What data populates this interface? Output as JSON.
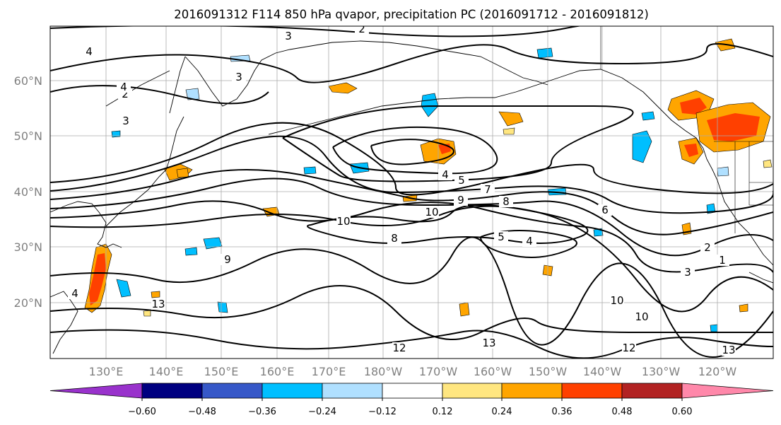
{
  "title": "2016091312 F114 850 hPa qvapor, precipitation PC (2016091712 - 2016091812)",
  "map": {
    "lat_labels": [
      "60°N",
      "50°N",
      "40°N",
      "30°N",
      "20°N"
    ],
    "lon_labels": [
      "130°E",
      "140°E",
      "150°E",
      "160°E",
      "170°E",
      "180°W",
      "170°W",
      "160°W",
      "150°W",
      "140°W",
      "130°W",
      "120°W"
    ],
    "gridlines": true,
    "contour_labels": [
      "2",
      "3",
      "4",
      "3",
      "2",
      "3",
      "4",
      "5",
      "7",
      "9",
      "8",
      "10",
      "10",
      "8",
      "9",
      "5",
      "4",
      "6",
      "2",
      "1",
      "4",
      "3",
      "10",
      "10",
      "12",
      "12",
      "13",
      "13",
      "13",
      "4"
    ]
  },
  "colorbar": {
    "tick_labels": [
      "−0.60",
      "−0.48",
      "−0.36",
      "−0.24",
      "−0.12",
      "0.12",
      "0.24",
      "0.36",
      "0.48",
      "0.60"
    ],
    "colors": [
      "#9932cc",
      "#000080",
      "#3658c8",
      "#00bfff",
      "#b0e0ff",
      "#ffffff",
      "#ffe680",
      "#ffa500",
      "#ff4000",
      "#b22222",
      "#ff88aa"
    ]
  }
}
